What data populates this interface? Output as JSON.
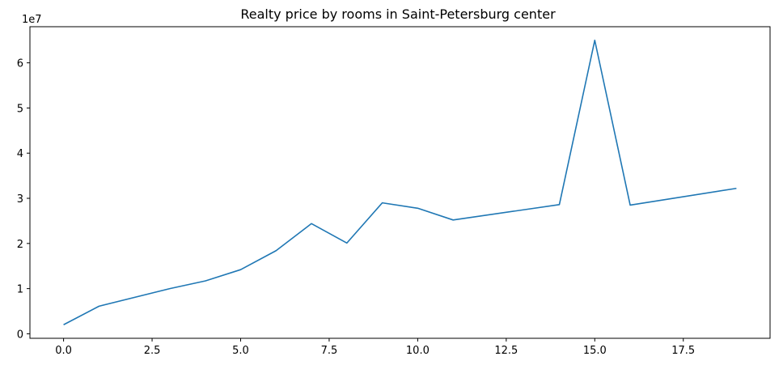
{
  "chart_data": {
    "type": "line",
    "title": "Realty price by rooms in Saint-Petersburg center",
    "xlabel": "",
    "ylabel": "",
    "y_offset_label": "1e7",
    "xlim": [
      -0.95,
      19.95
    ],
    "ylim": [
      -0.1,
      6.8
    ],
    "x_ticks": [
      0.0,
      2.5,
      5.0,
      7.5,
      10.0,
      12.5,
      15.0,
      17.5
    ],
    "x_tick_labels": [
      "0.0",
      "2.5",
      "5.0",
      "7.5",
      "10.0",
      "12.5",
      "15.0",
      "17.5"
    ],
    "y_ticks": [
      0,
      1,
      2,
      3,
      4,
      5,
      6
    ],
    "y_tick_labels": [
      "0",
      "1",
      "2",
      "3",
      "4",
      "5",
      "6"
    ],
    "grid": false,
    "line_color": "#1f77b4",
    "series": [
      {
        "x": [
          0,
          1,
          3,
          4,
          5,
          6,
          7,
          8,
          9,
          10,
          11,
          14,
          15,
          16,
          19
        ],
        "values": [
          2000000,
          6100000,
          10000000,
          11700000,
          14200000,
          18400000,
          24400000,
          20100000,
          29000000,
          27800000,
          25200000,
          28600000,
          65000000,
          28500000,
          32200000
        ]
      }
    ]
  }
}
